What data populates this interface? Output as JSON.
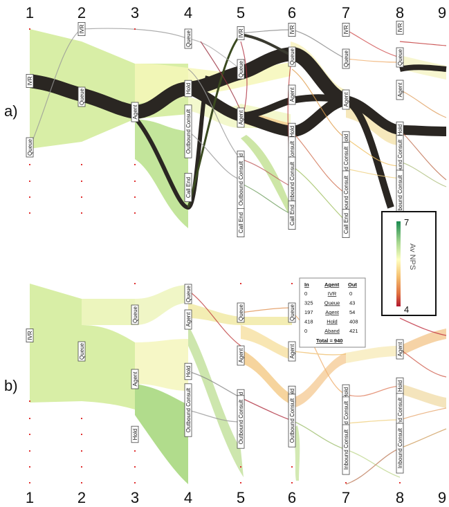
{
  "step_numbers": [
    "1",
    "2",
    "3",
    "4",
    "5",
    "6",
    "7",
    "8",
    "9"
  ],
  "panels": {
    "a": {
      "label": "a)",
      "nodes": [
        {
          "label": "IVR",
          "step": 1,
          "y": 117
        },
        {
          "label": "Queue",
          "step": 1,
          "y": 213
        },
        {
          "label": "IVR",
          "step": 2,
          "y": 42
        },
        {
          "label": "Queue",
          "step": 2,
          "y": 140
        },
        {
          "label": "Agent",
          "step": 3,
          "y": 162
        },
        {
          "label": "Queue",
          "step": 4,
          "y": 56
        },
        {
          "label": "Hold",
          "step": 4,
          "y": 128
        },
        {
          "label": "Outbound Consult",
          "step": 4,
          "y": 190
        },
        {
          "label": "Call End",
          "step": 4,
          "y": 271
        },
        {
          "label": "IVR",
          "step": 5,
          "y": 48
        },
        {
          "label": "Queue",
          "step": 5,
          "y": 100
        },
        {
          "label": "Agent",
          "step": 5,
          "y": 170
        },
        {
          "label": "Hold",
          "step": 5,
          "y": 230
        },
        {
          "label": "Outbound Consult",
          "step": 5,
          "y": 265
        },
        {
          "label": "Call End",
          "step": 5,
          "y": 322
        },
        {
          "label": "IVR",
          "step": 6,
          "y": 43
        },
        {
          "label": "Queue",
          "step": 6,
          "y": 82
        },
        {
          "label": "Agent",
          "step": 6,
          "y": 137
        },
        {
          "label": "Hold",
          "step": 6,
          "y": 190
        },
        {
          "label": "Outbound Consult",
          "step": 6,
          "y": 236
        },
        {
          "label": "Inbound Consult",
          "step": 6,
          "y": 263
        },
        {
          "label": "Call End",
          "step": 6,
          "y": 311
        },
        {
          "label": "IVR",
          "step": 7,
          "y": 43
        },
        {
          "label": "Queue",
          "step": 7,
          "y": 85
        },
        {
          "label": "Agent",
          "step": 7,
          "y": 144
        },
        {
          "label": "Hold",
          "step": 7,
          "y": 202
        },
        {
          "label": "Outbound Consult",
          "step": 7,
          "y": 244
        },
        {
          "label": "Inbound Consult",
          "step": 7,
          "y": 283
        },
        {
          "label": "Call End",
          "step": 7,
          "y": 323
        },
        {
          "label": "IVR",
          "step": 8,
          "y": 40
        },
        {
          "label": "Queue",
          "step": 8,
          "y": 83
        },
        {
          "label": "Agent",
          "step": 8,
          "y": 130
        },
        {
          "label": "Hold",
          "step": 8,
          "y": 188
        },
        {
          "label": "Outbound Consult",
          "step": 8,
          "y": 234
        },
        {
          "label": "Inbound Consult",
          "step": 8,
          "y": 282
        }
      ],
      "dot_rows": [
        42,
        140,
        238,
        262,
        285,
        308
      ]
    },
    "b": {
      "label": "b)",
      "nodes": [
        {
          "label": "IVR",
          "step": 1,
          "y": 485
        },
        {
          "label": "Queue",
          "step": 2,
          "y": 508
        },
        {
          "label": "Queue",
          "step": 3,
          "y": 455
        },
        {
          "label": "Agent",
          "step": 3,
          "y": 548
        },
        {
          "label": "Hold",
          "step": 3,
          "y": 628
        },
        {
          "label": "Queue",
          "step": 4,
          "y": 425
        },
        {
          "label": "Agent",
          "step": 4,
          "y": 462
        },
        {
          "label": "Hold",
          "step": 4,
          "y": 537
        },
        {
          "label": "Outbound Consult",
          "step": 4,
          "y": 593
        },
        {
          "label": "Queue",
          "step": 5,
          "y": 452
        },
        {
          "label": "Agent",
          "step": 5,
          "y": 514
        },
        {
          "label": "Hold",
          "step": 5,
          "y": 575
        },
        {
          "label": "Outbound Consult",
          "step": 5,
          "y": 610
        },
        {
          "label": "Queue",
          "step": 6,
          "y": 452
        },
        {
          "label": "Agent",
          "step": 6,
          "y": 508
        },
        {
          "label": "Hold",
          "step": 6,
          "y": 570
        },
        {
          "label": "Outbound Consult",
          "step": 6,
          "y": 608
        },
        {
          "label": "Hold",
          "step": 7,
          "y": 568
        },
        {
          "label": "Outbound Consult",
          "step": 7,
          "y": 612
        },
        {
          "label": "Inbound Consult",
          "step": 7,
          "y": 650
        },
        {
          "label": "Agent",
          "step": 8,
          "y": 505
        },
        {
          "label": "Hold",
          "step": 8,
          "y": 558
        },
        {
          "label": "Outbound Consult",
          "step": 8,
          "y": 607
        },
        {
          "label": "Inbound Consult",
          "step": 8,
          "y": 648
        }
      ],
      "dot_rows": [
        410,
        580,
        605,
        628,
        652,
        675,
        698
      ]
    }
  },
  "legend": {
    "title": "Av NPS",
    "max": "7",
    "min": "4",
    "colors": [
      "#1a8a50",
      "#a8d890",
      "#ffffc0",
      "#f5c070",
      "#e07040",
      "#b01830"
    ]
  },
  "tooltip": {
    "headers": {
      "in": "In",
      "node": "Agent",
      "out": "Out"
    },
    "rows": [
      {
        "in": "0",
        "label": "IVR",
        "out": "0"
      },
      {
        "in": "325",
        "label": "Queue",
        "out": "43"
      },
      {
        "in": "197",
        "label": "Agent",
        "out": "54"
      },
      {
        "in": "418",
        "label": "Hold",
        "out": "408"
      },
      {
        "in": "0",
        "label": "Aband",
        "out": "421"
      }
    ],
    "total": "Total = 940"
  }
}
